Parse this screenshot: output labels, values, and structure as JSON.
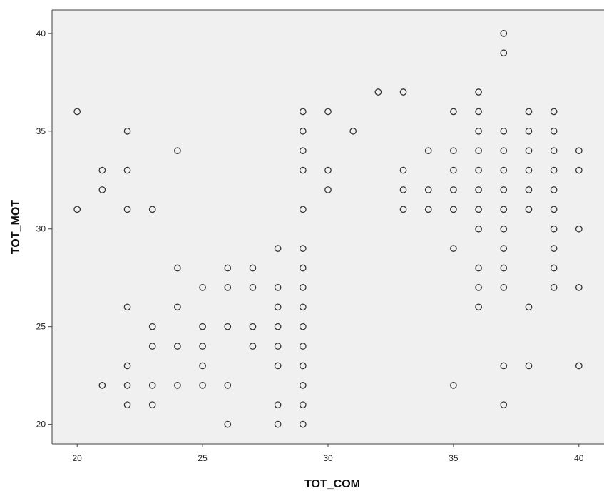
{
  "colors": {
    "background": "#ffffff",
    "plot_area": "#f0f0f0",
    "axis": "#404040",
    "marker_stroke": "#333333"
  },
  "chart_data": {
    "type": "scatter",
    "title": "",
    "xlabel": "TOT_COM",
    "ylabel": "TOT_MOT",
    "xlim": [
      19,
      41
    ],
    "ylim": [
      19,
      41.2
    ],
    "xticks": [
      20,
      25,
      30,
      35,
      40
    ],
    "yticks": [
      20,
      25,
      30,
      35,
      40
    ],
    "grid": false,
    "marker": "open-circle",
    "series": [
      {
        "points": [
          [
            20,
            36
          ],
          [
            20,
            31
          ],
          [
            21,
            33
          ],
          [
            21,
            32
          ],
          [
            21,
            22
          ],
          [
            22,
            35
          ],
          [
            22,
            33
          ],
          [
            22,
            31
          ],
          [
            22,
            26
          ],
          [
            22,
            23
          ],
          [
            22,
            22
          ],
          [
            22,
            21
          ],
          [
            23,
            31
          ],
          [
            23,
            25
          ],
          [
            23,
            24
          ],
          [
            23,
            22
          ],
          [
            23,
            21
          ],
          [
            24,
            34
          ],
          [
            24,
            28
          ],
          [
            24,
            26
          ],
          [
            24,
            24
          ],
          [
            24,
            22
          ],
          [
            25,
            27
          ],
          [
            25,
            25
          ],
          [
            25,
            24
          ],
          [
            25,
            23
          ],
          [
            25,
            22
          ],
          [
            26,
            28
          ],
          [
            26,
            27
          ],
          [
            26,
            25
          ],
          [
            26,
            22
          ],
          [
            26,
            20
          ],
          [
            27,
            28
          ],
          [
            27,
            27
          ],
          [
            27,
            25
          ],
          [
            27,
            24
          ],
          [
            28,
            29
          ],
          [
            28,
            27
          ],
          [
            28,
            26
          ],
          [
            28,
            25
          ],
          [
            28,
            24
          ],
          [
            28,
            23
          ],
          [
            28,
            21
          ],
          [
            28,
            20
          ],
          [
            29,
            36
          ],
          [
            29,
            35
          ],
          [
            29,
            34
          ],
          [
            29,
            33
          ],
          [
            29,
            31
          ],
          [
            29,
            29
          ],
          [
            29,
            28
          ],
          [
            29,
            27
          ],
          [
            29,
            26
          ],
          [
            29,
            25
          ],
          [
            29,
            24
          ],
          [
            29,
            23
          ],
          [
            29,
            22
          ],
          [
            29,
            21
          ],
          [
            29,
            20
          ],
          [
            30,
            36
          ],
          [
            30,
            33
          ],
          [
            30,
            32
          ],
          [
            31,
            35
          ],
          [
            32,
            37
          ],
          [
            33,
            37
          ],
          [
            33,
            33
          ],
          [
            33,
            32
          ],
          [
            33,
            31
          ],
          [
            34,
            34
          ],
          [
            34,
            32
          ],
          [
            34,
            31
          ],
          [
            35,
            36
          ],
          [
            35,
            34
          ],
          [
            35,
            33
          ],
          [
            35,
            32
          ],
          [
            35,
            31
          ],
          [
            35,
            29
          ],
          [
            35,
            22
          ],
          [
            36,
            37
          ],
          [
            36,
            36
          ],
          [
            36,
            35
          ],
          [
            36,
            34
          ],
          [
            36,
            33
          ],
          [
            36,
            32
          ],
          [
            36,
            31
          ],
          [
            36,
            30
          ],
          [
            36,
            28
          ],
          [
            36,
            27
          ],
          [
            36,
            26
          ],
          [
            37,
            40
          ],
          [
            37,
            39
          ],
          [
            37,
            35
          ],
          [
            37,
            34
          ],
          [
            37,
            33
          ],
          [
            37,
            32
          ],
          [
            37,
            31
          ],
          [
            37,
            30
          ],
          [
            37,
            29
          ],
          [
            37,
            28
          ],
          [
            37,
            27
          ],
          [
            37,
            23
          ],
          [
            37,
            21
          ],
          [
            38,
            36
          ],
          [
            38,
            35
          ],
          [
            38,
            34
          ],
          [
            38,
            33
          ],
          [
            38,
            32
          ],
          [
            38,
            31
          ],
          [
            38,
            26
          ],
          [
            38,
            23
          ],
          [
            39,
            36
          ],
          [
            39,
            35
          ],
          [
            39,
            34
          ],
          [
            39,
            33
          ],
          [
            39,
            32
          ],
          [
            39,
            31
          ],
          [
            39,
            30
          ],
          [
            39,
            29
          ],
          [
            39,
            28
          ],
          [
            39,
            27
          ],
          [
            40,
            34
          ],
          [
            40,
            33
          ],
          [
            40,
            30
          ],
          [
            40,
            27
          ],
          [
            40,
            23
          ]
        ]
      }
    ]
  }
}
